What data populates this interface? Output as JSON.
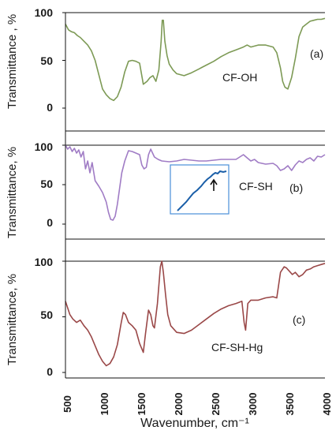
{
  "chart_data": [
    {
      "type": "line",
      "panel_label": "(a)",
      "annotation": "CF-OH",
      "ylabel": "Transmittance , %",
      "xlabel": "",
      "yticks": [
        "0",
        "50",
        "100"
      ],
      "ylim": [
        0,
        100
      ],
      "xlim": [
        500,
        4000
      ],
      "color": "#7d9a55",
      "series": [
        {
          "x": [
            500,
            540,
            580,
            620,
            660,
            700,
            750,
            800,
            850,
            900,
            950,
            1000,
            1050,
            1100,
            1150,
            1200,
            1250,
            1300,
            1350,
            1400,
            1450,
            1500,
            1550,
            1600,
            1640,
            1680,
            1720,
            1760,
            1790,
            1805,
            1820,
            1840,
            1870,
            1900,
            1950,
            2000,
            2100,
            2200,
            2300,
            2400,
            2500,
            2600,
            2700,
            2800,
            2900,
            2950,
            3000,
            3100,
            3200,
            3300,
            3350,
            3400,
            3430,
            3460,
            3500,
            3550,
            3600,
            3650,
            3700,
            3750,
            3800,
            3850,
            3900,
            3950,
            4000
          ],
          "y": [
            88,
            82,
            80,
            79,
            76,
            74,
            70,
            66,
            60,
            50,
            35,
            20,
            14,
            10,
            8,
            12,
            22,
            38,
            49,
            50,
            49,
            47,
            25,
            28,
            32,
            34,
            28,
            40,
            70,
            92,
            92,
            70,
            55,
            46,
            40,
            36,
            34,
            37,
            41,
            45,
            49,
            54,
            58,
            61,
            64,
            66,
            64,
            66,
            66,
            64,
            58,
            42,
            28,
            22,
            20,
            32,
            52,
            75,
            85,
            88,
            91,
            92,
            93,
            93,
            94
          ]
        }
      ]
    },
    {
      "type": "line",
      "panel_label": "(b)",
      "annotation": "CF-SH",
      "ylabel": "Transmittance, %",
      "xlabel": "",
      "yticks": [
        "0",
        "50",
        "100"
      ],
      "ylim": [
        0,
        100
      ],
      "xlim": [
        500,
        4000
      ],
      "color": "#a07cc5",
      "series": [
        {
          "x": [
            500,
            530,
            560,
            590,
            620,
            650,
            680,
            710,
            740,
            770,
            800,
            830,
            860,
            900,
            950,
            1000,
            1050,
            1080,
            1110,
            1140,
            1170,
            1200,
            1230,
            1260,
            1300,
            1350,
            1400,
            1450,
            1500,
            1530,
            1560,
            1590,
            1620,
            1650,
            1700,
            1750,
            1800,
            1900,
            2000,
            2100,
            2200,
            2300,
            2400,
            2500,
            2600,
            2700,
            2800,
            2900,
            2950,
            3000,
            3050,
            3100,
            3200,
            3300,
            3350,
            3400,
            3450,
            3500,
            3550,
            3600,
            3650,
            3700,
            3750,
            3800,
            3850,
            3900,
            3950,
            4000
          ],
          "y": [
            100,
            95,
            98,
            92,
            96,
            90,
            94,
            85,
            92,
            70,
            80,
            65,
            78,
            55,
            48,
            40,
            28,
            15,
            6,
            5,
            10,
            25,
            45,
            65,
            80,
            93,
            92,
            90,
            88,
            75,
            70,
            72,
            88,
            95,
            85,
            82,
            80,
            79,
            80,
            82,
            81,
            80,
            80,
            81,
            82,
            82,
            82,
            88,
            84,
            80,
            82,
            78,
            76,
            77,
            74,
            68,
            70,
            74,
            68,
            75,
            80,
            78,
            82,
            84,
            80,
            86,
            85,
            88
          ]
        }
      ]
    },
    {
      "type": "line",
      "panel_label": "(c)",
      "annotation": "CF-SH-Hg",
      "ylabel": "Transmittance, %",
      "xlabel": "Wavenumber, cm⁻¹",
      "xticks": [
        "500",
        "1000",
        "1500",
        "2000",
        "2500",
        "3000",
        "3500",
        "4000"
      ],
      "yticks": [
        "0",
        "50",
        "100"
      ],
      "ylim": [
        0,
        100
      ],
      "xlim": [
        500,
        4000
      ],
      "color": "#9a4848",
      "series": [
        {
          "x": [
            500,
            530,
            560,
            600,
            650,
            700,
            750,
            800,
            850,
            900,
            950,
            1000,
            1050,
            1100,
            1150,
            1200,
            1250,
            1280,
            1310,
            1350,
            1400,
            1450,
            1500,
            1550,
            1580,
            1620,
            1650,
            1680,
            1700,
            1740,
            1780,
            1800,
            1820,
            1850,
            1880,
            1920,
            2000,
            2100,
            2200,
            2300,
            2400,
            2500,
            2600,
            2700,
            2800,
            2880,
            2910,
            2930,
            2960,
            3000,
            3100,
            3200,
            3300,
            3350,
            3400,
            3450,
            3480,
            3520,
            3560,
            3600,
            3650,
            3700,
            3750,
            3800,
            3850,
            3900,
            3950,
            4000
          ],
          "y": [
            64,
            58,
            52,
            48,
            45,
            47,
            42,
            38,
            32,
            24,
            16,
            10,
            6,
            8,
            14,
            25,
            44,
            54,
            52,
            45,
            42,
            38,
            26,
            18,
            35,
            56,
            52,
            42,
            40,
            62,
            95,
            100,
            90,
            70,
            52,
            42,
            36,
            35,
            38,
            43,
            48,
            53,
            57,
            60,
            62,
            64,
            45,
            38,
            62,
            65,
            65,
            67,
            68,
            67,
            90,
            95,
            94,
            91,
            88,
            90,
            86,
            88,
            92,
            93,
            95,
            96,
            97,
            98
          ]
        }
      ]
    }
  ],
  "inset": {
    "color": "#1b5fa8",
    "border": "#4a8fd8"
  }
}
